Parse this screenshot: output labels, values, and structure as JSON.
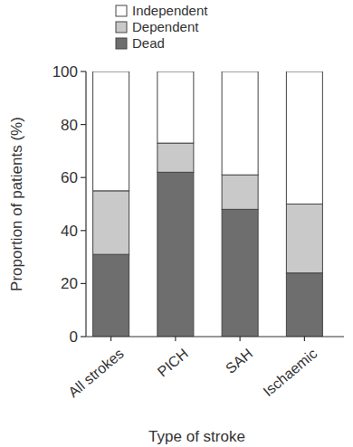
{
  "chart_data": {
    "type": "bar",
    "stacked": true,
    "x_label": "Type of stroke",
    "y_label": "Proportion of patients (%)",
    "categories": [
      "All strokes",
      "PICH",
      "SAH",
      "Ischaemic"
    ],
    "series": [
      {
        "name": "Dead",
        "color": "#6e6e6e",
        "values": [
          31,
          62,
          48,
          24
        ]
      },
      {
        "name": "Dependent",
        "color": "#c9c9c9",
        "values": [
          24,
          11,
          13,
          26
        ]
      },
      {
        "name": "Independent",
        "color": "#ffffff",
        "values": [
          45,
          27,
          39,
          50
        ]
      }
    ],
    "ylim": [
      0,
      100
    ],
    "yticks": [
      0,
      20,
      40,
      60,
      80,
      100
    ],
    "legend": "upper left"
  }
}
